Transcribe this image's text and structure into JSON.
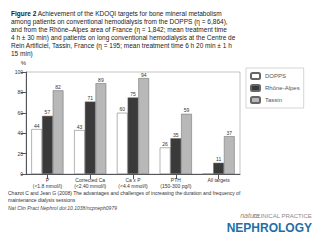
{
  "chart_data": {
    "type": "bar",
    "title": "Figure 2",
    "subtitle": "Achievement of the KDOQI targets for bone mineral metabolism\namong patients on conventional hemodialysis from the DOPPS (η = 6,864),\nand from the Rhône–Alpes area of France (η = 1,842; mean treatment time\n4 h ± 30 min) and patients on long conventional hemodialysis at the Centre de\nRein Artificiel, Tassin, France (η = 195; mean treatment time 6 h 20 min ± 1 h\n15 min)",
    "categories": [
      "P\n(<1.8 mmol/l)",
      "Corrected Ca\n(<2.40 mmol/l)",
      "Ca x P\n(<4.4 mmol/l)",
      "PTH\n(150-300 pg/l)",
      "All targets"
    ],
    "series": [
      {
        "name": "DOPPS",
        "color": "#ffffff",
        "values": [
          44,
          43,
          60,
          26,
          0
        ]
      },
      {
        "name": "Rhône-Alpes",
        "color": "#3a3a3a",
        "values": [
          57,
          71,
          75,
          35,
          11
        ]
      },
      {
        "name": "Tassin",
        "color": "#b8b8b8",
        "values": [
          82,
          89,
          94,
          59,
          37
        ]
      }
    ],
    "ylabel": "%",
    "ylim": [
      0,
      100
    ],
    "yticks": [
      0,
      20,
      40,
      60,
      80,
      100
    ],
    "grid": false,
    "legend": "right",
    "data_labels": true,
    "annotations": [
      "Chazot C and Jean G (2008) The advantages and challenges of increasing the duration and frequency of",
      "maintenance dialysis sessions",
      "Nat Clin Pract Nephrol doi:10.1038/ncpneph0979",
      "nature",
      "CLINICAL PRACTICE",
      "NEPHROLOGY"
    ]
  }
}
